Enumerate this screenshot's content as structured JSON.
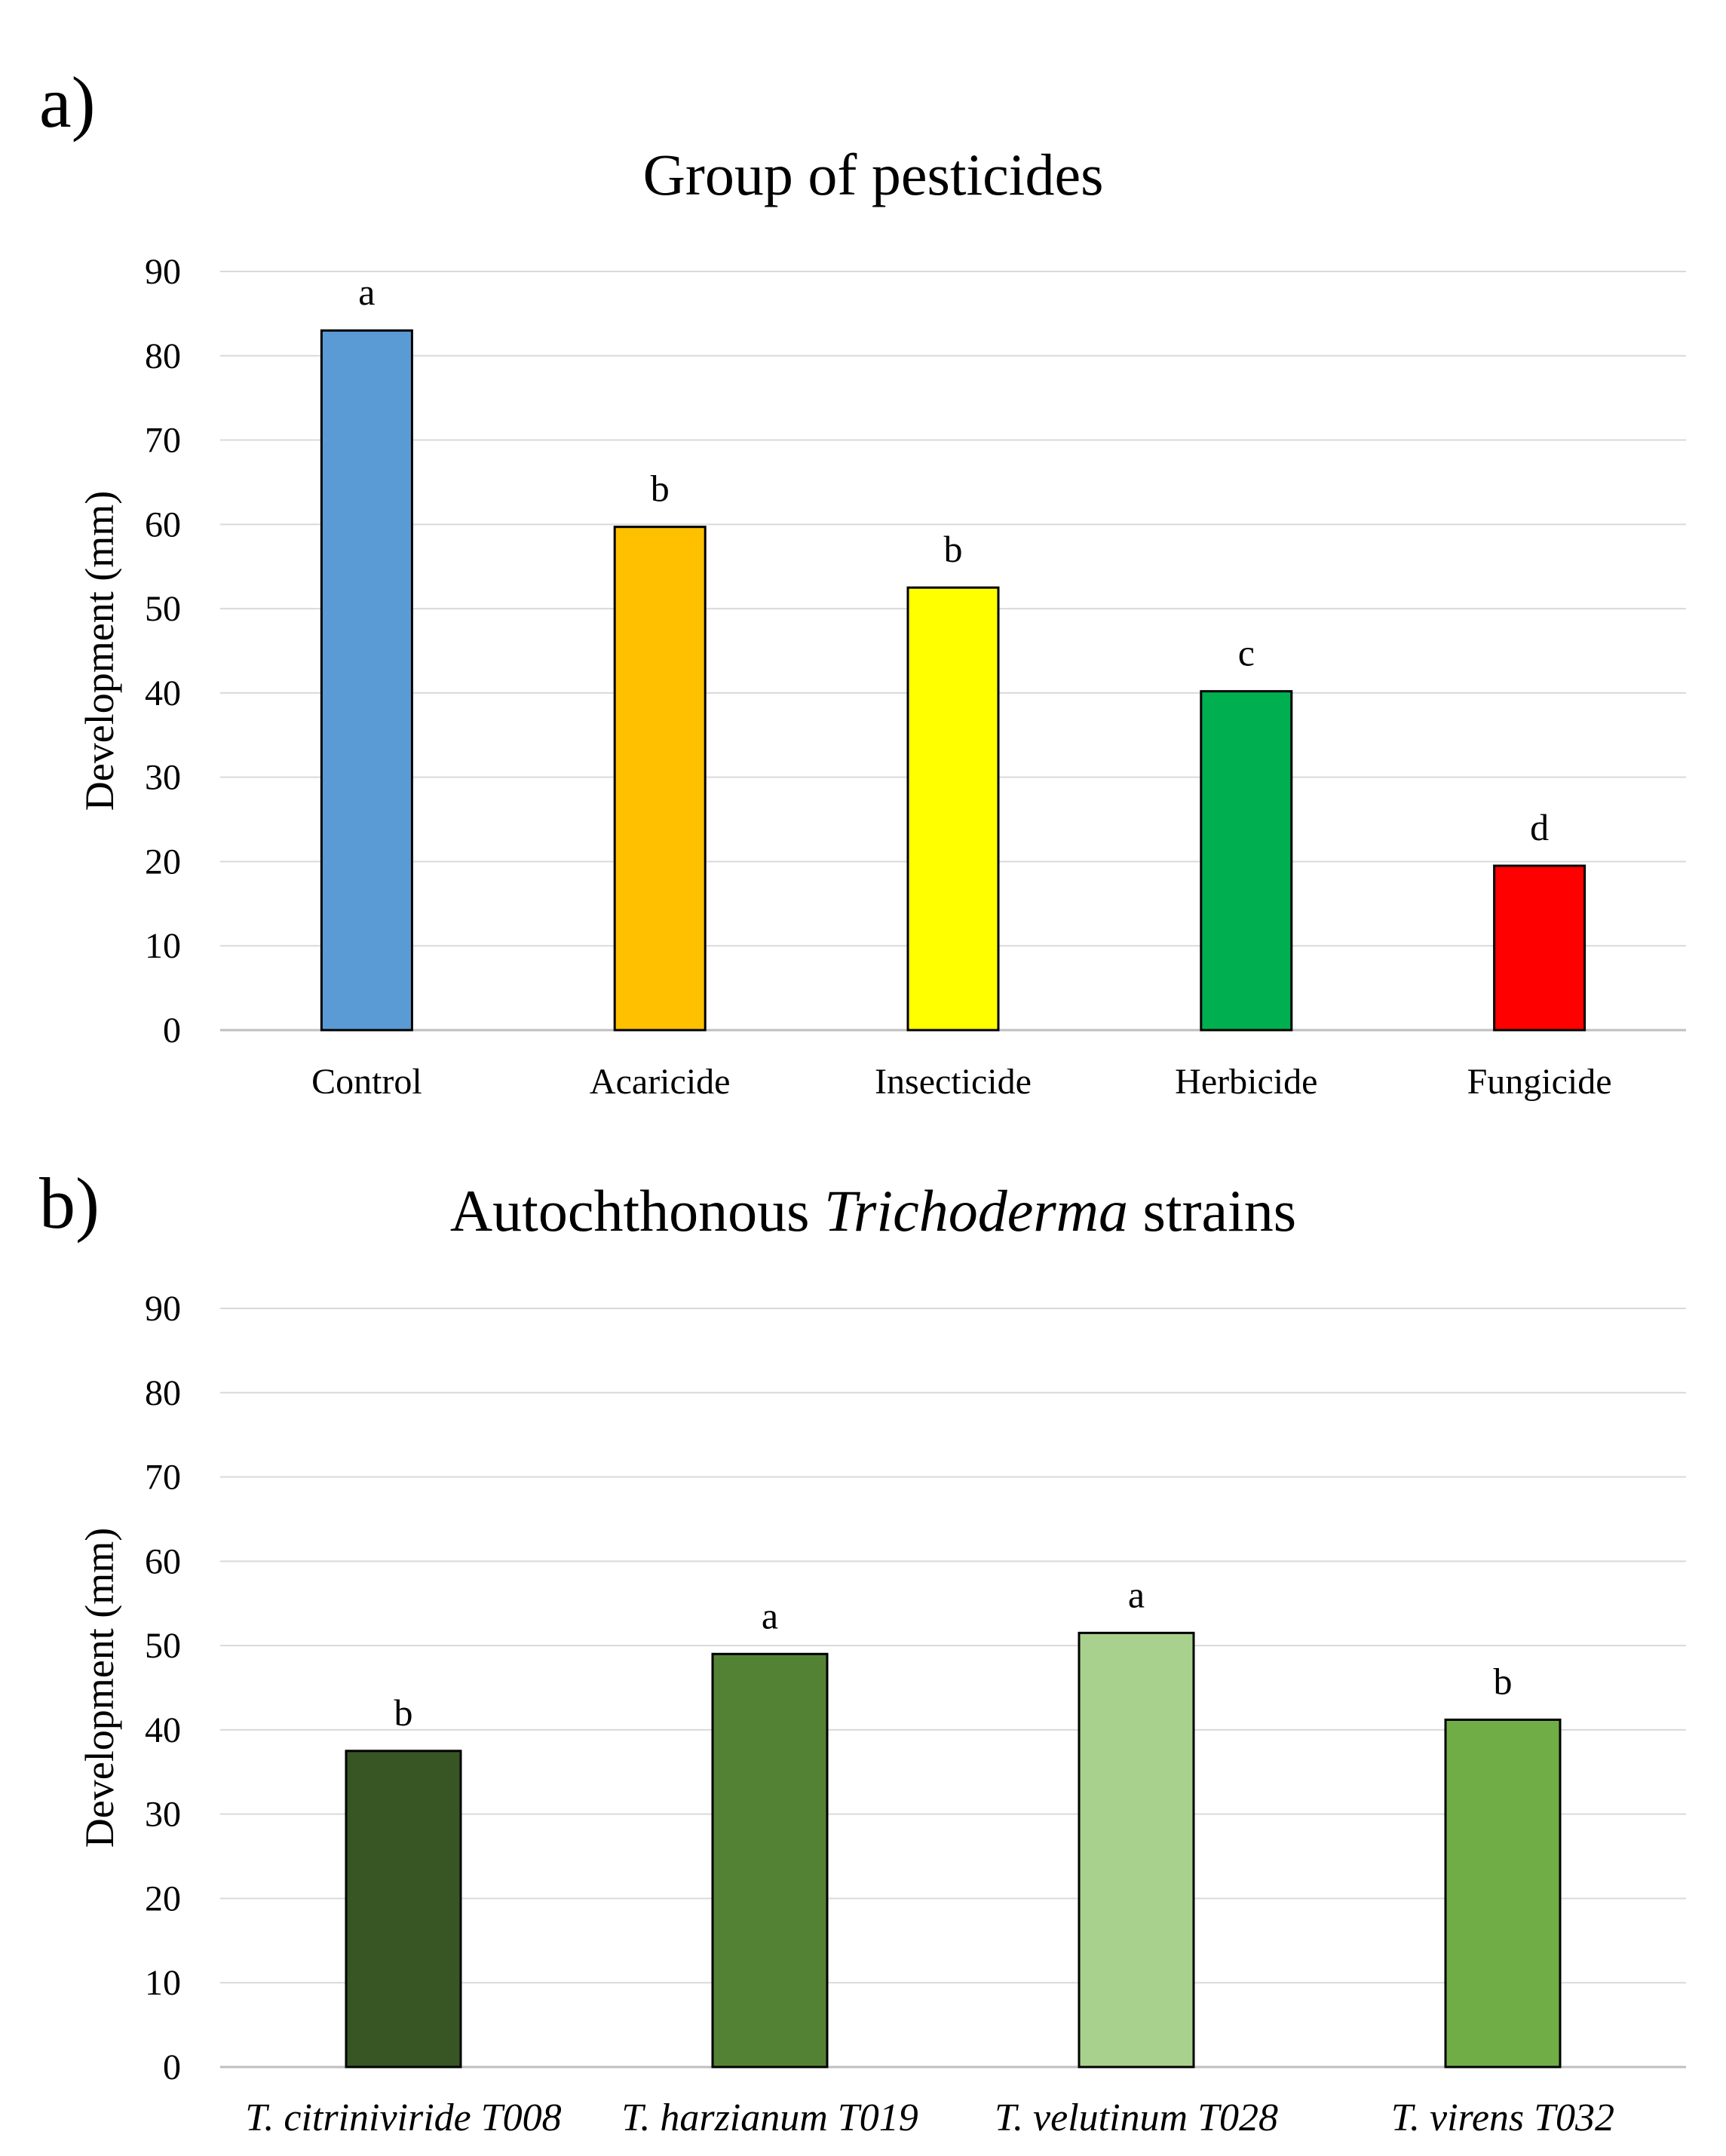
{
  "panels": {
    "a": {
      "letter": "a)"
    },
    "b": {
      "letter": "b)"
    }
  },
  "chart_data": [
    {
      "type": "bar",
      "title": "Group of pesticides",
      "xlabel": "",
      "ylabel": "Development (mm)",
      "ylim": [
        0,
        90
      ],
      "yticks": [
        0,
        10,
        20,
        30,
        40,
        50,
        60,
        70,
        80,
        90
      ],
      "grid": true,
      "categories": [
        "Control",
        "Acaricide",
        "Insecticide",
        "Herbicide",
        "Fungicide"
      ],
      "values": [
        83,
        59.7,
        52.5,
        40.2,
        19.5
      ],
      "significance": [
        "a",
        "b",
        "b",
        "c",
        "d"
      ],
      "colors": [
        "#5B9BD5",
        "#FFC000",
        "#FFFF00",
        "#00B050",
        "#FF0000"
      ],
      "italic_categories": false
    },
    {
      "type": "bar",
      "title_parts": [
        {
          "text": "Autochthonous ",
          "italic": false
        },
        {
          "text": "Trichoderma",
          "italic": true
        },
        {
          "text": " strains",
          "italic": false
        }
      ],
      "xlabel": "",
      "ylabel": "Development (mm)",
      "ylim": [
        0,
        90
      ],
      "yticks": [
        0,
        10,
        20,
        30,
        40,
        50,
        60,
        70,
        80,
        90
      ],
      "grid": true,
      "categories": [
        "T. citriniviride T008",
        "T. harzianum T019",
        "T. velutinum T028",
        "T. virens T032"
      ],
      "values": [
        37.5,
        49,
        51.5,
        41.2
      ],
      "significance": [
        "b",
        "a",
        "a",
        "b"
      ],
      "colors": [
        "#375623",
        "#548235",
        "#A9D18E",
        "#70AD47"
      ],
      "italic_categories": true
    }
  ]
}
